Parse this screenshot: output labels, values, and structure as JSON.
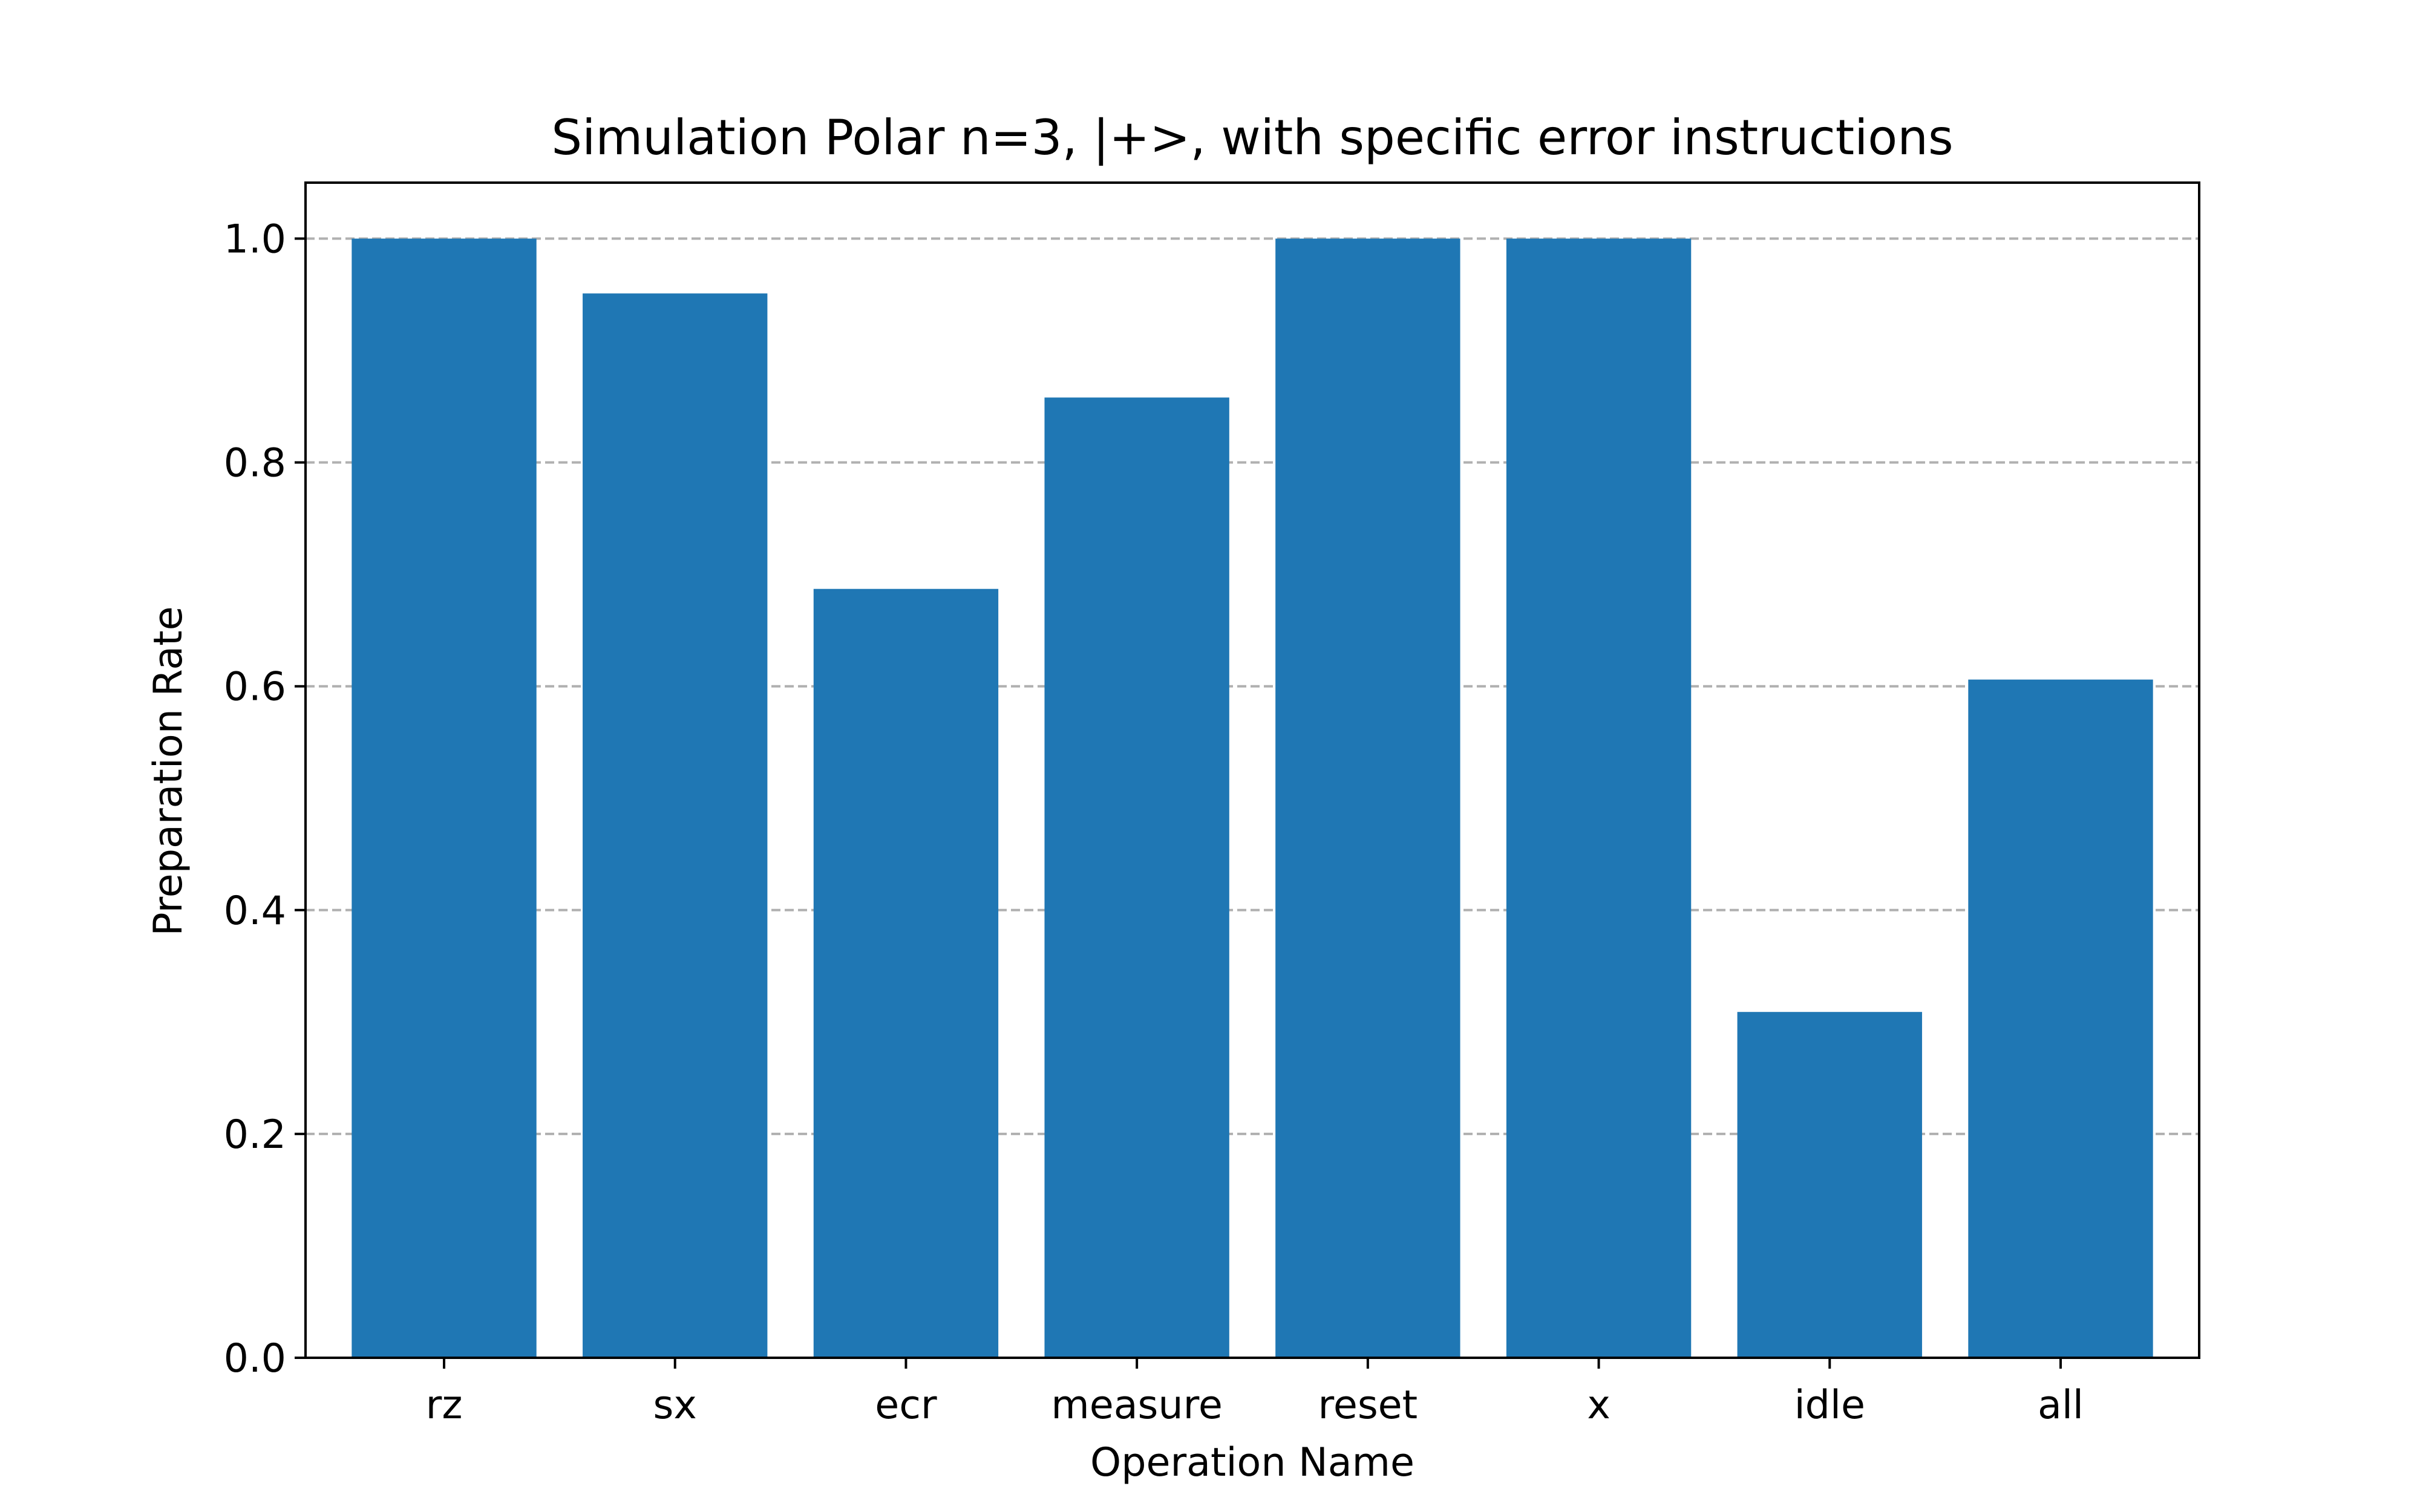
{
  "chart_data": {
    "type": "bar",
    "title": "Simulation Polar n=3, |+>, with specific error instructions",
    "xlabel": "Operation Name",
    "ylabel": "Preparation Rate",
    "categories": [
      "rz",
      "sx",
      "ecr",
      "measure",
      "reset",
      "x",
      "idle",
      "all"
    ],
    "values": [
      1.0,
      0.951,
      0.687,
      0.858,
      1.0,
      1.0,
      0.309,
      0.606
    ],
    "ylim": [
      0,
      1.05
    ],
    "yticks": [
      0.0,
      0.2,
      0.4,
      0.6,
      0.8,
      1.0
    ],
    "ytick_labels": [
      "0.0",
      "0.2",
      "0.4",
      "0.6",
      "0.8",
      "1.0"
    ],
    "grid": "y-dashed",
    "bar_color": "#1f77b4",
    "grid_color": "#b0b0b0"
  }
}
